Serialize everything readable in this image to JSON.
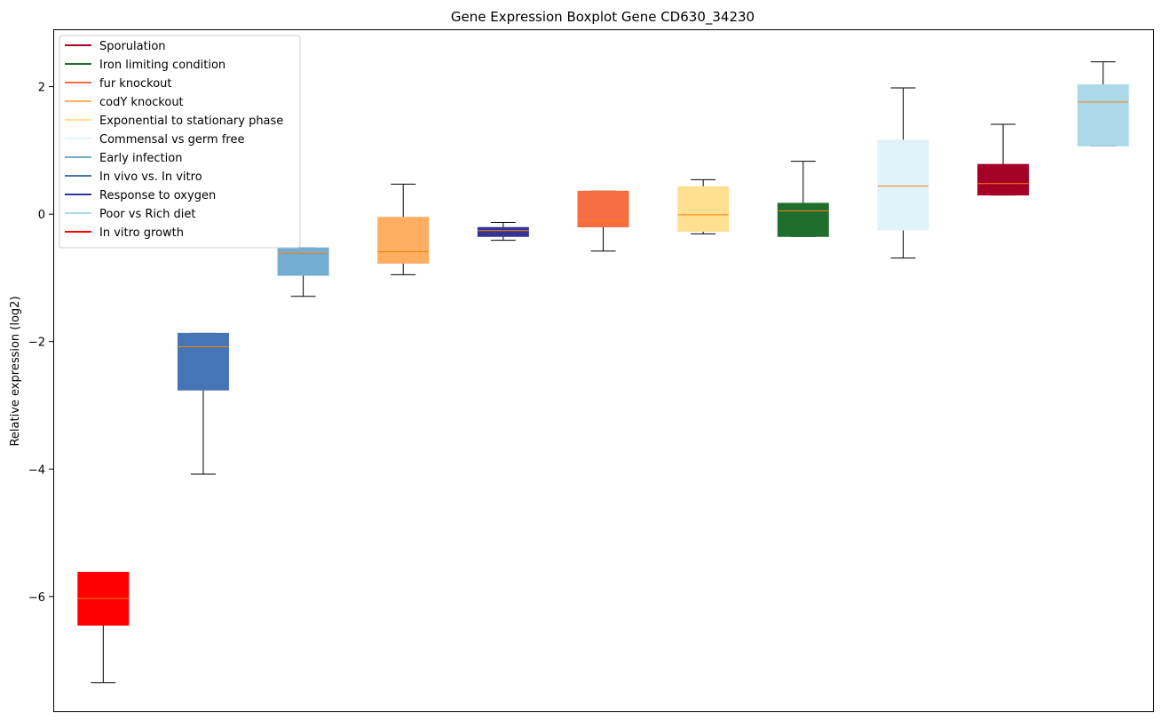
{
  "chart_data": {
    "type": "boxplot",
    "title": "Gene Expression Boxplot Gene CD630_34230",
    "xlabel": "",
    "ylabel": "Relative expression (log2)",
    "ylim": [
      -7.8,
      2.9
    ],
    "yticks": [
      -6,
      -4,
      -2,
      0,
      2
    ],
    "ytick_labels": [
      "−6",
      "−4",
      "−2",
      "0",
      "2"
    ],
    "grid": false,
    "legend_position": "top-left",
    "median_color": "#ff7f0e",
    "boxes": [
      {
        "name": "In vitro growth",
        "color": "#ff0000",
        "whislo": -7.35,
        "q1": -6.45,
        "med": -6.03,
        "q3": -5.62,
        "whishi": -5.62
      },
      {
        "name": "In vivo vs. In vitro",
        "color": "#4575b4",
        "whislo": -4.08,
        "q1": -2.76,
        "med": -2.08,
        "q3": -1.87,
        "whishi": -1.87
      },
      {
        "name": "Early infection",
        "color": "#74add1",
        "whislo": -1.29,
        "q1": -0.96,
        "med": -0.62,
        "q3": -0.53,
        "whishi": -0.53
      },
      {
        "name": "codY knockout",
        "color": "#fdae61",
        "whislo": -0.95,
        "q1": -0.77,
        "med": -0.59,
        "q3": -0.05,
        "whishi": 0.47
      },
      {
        "name": "Response to oxygen",
        "color": "#313695",
        "whislo": -0.41,
        "q1": -0.35,
        "med": -0.26,
        "q3": -0.21,
        "whishi": -0.13
      },
      {
        "name": "fur knockout",
        "color": "#f46d43",
        "whislo": -0.58,
        "q1": -0.2,
        "med": -0.1,
        "q3": 0.36,
        "whishi": 0.36
      },
      {
        "name": "Exponential to stationary phase",
        "color": "#fee090",
        "whislo": -0.31,
        "q1": -0.27,
        "med": -0.01,
        "q3": 0.43,
        "whishi": 0.54
      },
      {
        "name": "Iron limiting condition",
        "color": "#1f6e2e",
        "whislo": -0.35,
        "q1": -0.35,
        "med": 0.05,
        "q3": 0.17,
        "whishi": 0.83
      },
      {
        "name": "Commensal vs germ free",
        "color": "#e0f3f8",
        "whislo": -0.69,
        "q1": -0.25,
        "med": 0.44,
        "q3": 1.16,
        "whishi": 1.98
      },
      {
        "name": "Sporulation",
        "color": "#a50026",
        "whislo": 0.3,
        "q1": 0.3,
        "med": 0.48,
        "q3": 0.78,
        "whishi": 1.41
      },
      {
        "name": "Poor vs Rich diet",
        "color": "#abd9e9",
        "whislo": 1.07,
        "q1": 1.07,
        "med": 1.76,
        "q3": 2.03,
        "whishi": 2.39
      }
    ],
    "legend": [
      {
        "label": "Sporulation",
        "color": "#a50026"
      },
      {
        "label": "Iron limiting condition",
        "color": "#1f6e2e"
      },
      {
        "label": "fur knockout",
        "color": "#f46d43"
      },
      {
        "label": "codY knockout",
        "color": "#fdae61"
      },
      {
        "label": "Exponential to stationary phase",
        "color": "#fee090"
      },
      {
        "label": "Commensal vs germ free",
        "color": "#e0f3f8"
      },
      {
        "label": "Early infection",
        "color": "#74add1"
      },
      {
        "label": "In vivo vs. In vitro",
        "color": "#4575b4"
      },
      {
        "label": "Response to oxygen",
        "color": "#313695"
      },
      {
        "label": "Poor vs Rich diet",
        "color": "#abd9e9"
      },
      {
        "label": "In vitro growth",
        "color": "#ff0000"
      }
    ]
  }
}
